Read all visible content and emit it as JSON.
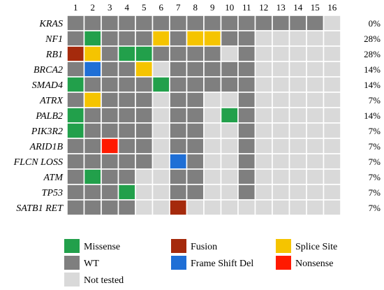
{
  "chart_data": {
    "type": "heatmap",
    "columns": [
      "1",
      "2",
      "3",
      "4",
      "5",
      "6",
      "7",
      "8",
      "9",
      "10",
      "11",
      "12",
      "13",
      "14",
      "15",
      "16"
    ],
    "rows": [
      {
        "gene": "KRAS",
        "percent": "0%",
        "cells": [
          "W",
          "W",
          "W",
          "W",
          "W",
          "W",
          "W",
          "W",
          "W",
          "W",
          "W",
          "W",
          "W",
          "W",
          "W",
          "N"
        ]
      },
      {
        "gene": "NF1",
        "percent": "28%",
        "cells": [
          "W",
          "M",
          "W",
          "W",
          "W",
          "S",
          "W",
          "S",
          "S",
          "W",
          "W",
          "N",
          "N",
          "N",
          "N",
          "N"
        ]
      },
      {
        "gene": "RB1",
        "percent": "28%",
        "cells": [
          "F",
          "S",
          "W",
          "M",
          "M",
          "W",
          "W",
          "W",
          "W",
          "N",
          "W",
          "N",
          "N",
          "N",
          "N",
          "N"
        ]
      },
      {
        "gene": "BRCA2",
        "percent": "14%",
        "cells": [
          "W",
          "D",
          "W",
          "W",
          "S",
          "N",
          "W",
          "W",
          "W",
          "W",
          "W",
          "N",
          "N",
          "N",
          "N",
          "N"
        ]
      },
      {
        "gene": "SMAD4",
        "percent": "14%",
        "cells": [
          "M",
          "W",
          "W",
          "W",
          "W",
          "M",
          "W",
          "W",
          "W",
          "W",
          "W",
          "N",
          "N",
          "N",
          "N",
          "N"
        ]
      },
      {
        "gene": "ATRX",
        "percent": "7%",
        "cells": [
          "W",
          "S",
          "W",
          "W",
          "W",
          "N",
          "W",
          "W",
          "N",
          "N",
          "W",
          "N",
          "N",
          "N",
          "N",
          "N"
        ]
      },
      {
        "gene": "PALB2",
        "percent": "14%",
        "cells": [
          "M",
          "W",
          "W",
          "W",
          "W",
          "N",
          "W",
          "W",
          "N",
          "M",
          "W",
          "N",
          "N",
          "N",
          "N",
          "N"
        ]
      },
      {
        "gene": "PIK3R2",
        "percent": "7%",
        "cells": [
          "M",
          "W",
          "W",
          "W",
          "W",
          "N",
          "W",
          "W",
          "N",
          "N",
          "W",
          "N",
          "N",
          "N",
          "N",
          "N"
        ]
      },
      {
        "gene": "ARID1B",
        "percent": "7%",
        "cells": [
          "W",
          "W",
          "X",
          "W",
          "W",
          "N",
          "W",
          "W",
          "N",
          "N",
          "W",
          "N",
          "N",
          "N",
          "N",
          "N"
        ]
      },
      {
        "gene": "FLCN LOSS",
        "percent": "7%",
        "cells": [
          "W",
          "W",
          "W",
          "W",
          "W",
          "N",
          "D",
          "W",
          "N",
          "N",
          "W",
          "N",
          "N",
          "N",
          "N",
          "N"
        ]
      },
      {
        "gene": "ATM",
        "percent": "7%",
        "cells": [
          "W",
          "M",
          "W",
          "W",
          "N",
          "N",
          "W",
          "W",
          "N",
          "N",
          "W",
          "N",
          "N",
          "N",
          "N",
          "N"
        ]
      },
      {
        "gene": "TP53",
        "percent": "7%",
        "cells": [
          "W",
          "W",
          "W",
          "M",
          "N",
          "N",
          "W",
          "W",
          "N",
          "N",
          "W",
          "N",
          "N",
          "N",
          "N",
          "N"
        ]
      },
      {
        "gene": "SATB1 RET",
        "percent": "7%",
        "cells": [
          "W",
          "W",
          "W",
          "W",
          "N",
          "N",
          "F",
          "N",
          "N",
          "N",
          "N",
          "N",
          "N",
          "N",
          "N",
          "N"
        ]
      }
    ],
    "categories": {
      "M": {
        "label": "Missense",
        "color": "#22a04b"
      },
      "W": {
        "label": "WT",
        "color": "#7f7f7f"
      },
      "N": {
        "label": "Not tested",
        "color": "#d9d9d9"
      },
      "F": {
        "label": "Fusion",
        "color": "#a52a0c"
      },
      "D": {
        "label": "Frame Shift Del",
        "color": "#1f6fd6"
      },
      "S": {
        "label": "Splice Site",
        "color": "#f5c400"
      },
      "X": {
        "label": "Nonsense",
        "color": "#ff1a00"
      }
    },
    "legend_order": [
      "M",
      "W",
      "N",
      "F",
      "D",
      "S",
      "X"
    ],
    "legend_position": "bottom",
    "grid_line_color": "#ffffff"
  }
}
